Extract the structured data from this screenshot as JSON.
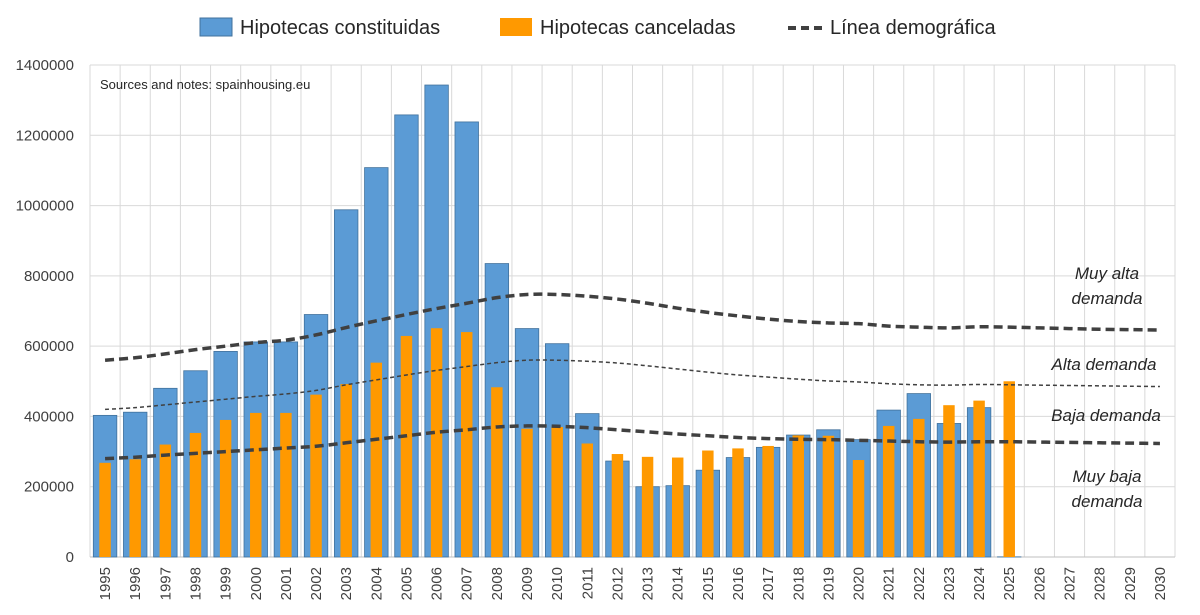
{
  "chart_data": {
    "type": "bar",
    "categories": [
      "1995",
      "1996",
      "1997",
      "1998",
      "1999",
      "2000",
      "2001",
      "2002",
      "2003",
      "2004",
      "2005",
      "2006",
      "2007",
      "2008",
      "2009",
      "2010",
      "2011",
      "2012",
      "2013",
      "2014",
      "2015",
      "2016",
      "2017",
      "2018",
      "2019",
      "2020",
      "2021",
      "2022",
      "2023",
      "2024",
      "2025",
      "2026",
      "2027",
      "2028",
      "2029",
      "2030"
    ],
    "ylim": [
      0,
      1400000
    ],
    "yticks": [
      "0",
      "200000",
      "400000",
      "600000",
      "800000",
      "1000000",
      "1200000",
      "1400000"
    ],
    "grid": true,
    "legend_position": "top",
    "series": [
      {
        "name": "Hipotecas constituidas",
        "kind": "bar",
        "color": "#5B9BD5",
        "values": [
          403000,
          412000,
          480000,
          530000,
          585000,
          612000,
          612000,
          690000,
          988000,
          1108000,
          1258000,
          1343000,
          1238000,
          835000,
          650000,
          607000,
          408000,
          273000,
          200000,
          203000,
          247000,
          283000,
          312000,
          347000,
          362000,
          334000,
          418000,
          465000,
          380000,
          425000,
          457,
          null,
          null,
          null,
          null,
          null
        ]
      },
      {
        "name": "Hipotecas canceladas",
        "kind": "bar",
        "color": "#FF9900",
        "values": [
          268000,
          278000,
          320000,
          353000,
          390000,
          410000,
          410000,
          462000,
          492000,
          553000,
          629000,
          651000,
          640000,
          483000,
          365000,
          370000,
          323000,
          293000,
          285000,
          283000,
          303000,
          309000,
          316000,
          346000,
          345000,
          276000,
          373000,
          393000,
          432000,
          445000,
          500000,
          null,
          null,
          null,
          null,
          null
        ]
      },
      {
        "name": "Línea demográfica",
        "kind": "dashed-line",
        "color": "#404040",
        "lines": [
          {
            "label": "Muy alta demanda",
            "weight": "thick",
            "values": [
              560000,
              567000,
              578000,
              590000,
              600000,
              610000,
              617000,
              632000,
              653000,
              672000,
              690000,
              707000,
              722000,
              738000,
              747000,
              747000,
              742000,
              734000,
              722000,
              708000,
              696000,
              686000,
              677000,
              670000,
              666000,
              664000,
              657000,
              654000,
              652000,
              655000,
              654000,
              652000,
              650000,
              648000,
              647000,
              646000
            ]
          },
          {
            "label": "Alta demanda",
            "weight": "thin",
            "values": [
              420000,
              425000,
              433000,
              441000,
              449000,
              457000,
              464000,
              474000,
              490000,
              504000,
              518000,
              531000,
              542000,
              553000,
              560000,
              560000,
              557000,
              552000,
              544000,
              535000,
              526000,
              518000,
              512000,
              506000,
              501000,
              498000,
              493000,
              490000,
              489000,
              491000,
              490000,
              489000,
              488000,
              487000,
              486000,
              485000
            ]
          },
          {
            "label": "Baja demanda",
            "weight": "thick",
            "values": [
              280000,
              284000,
              290000,
              295000,
              300000,
              305000,
              310000,
              315000,
              325000,
              335000,
              345000,
              355000,
              362000,
              370000,
              373000,
              372000,
              368000,
              362000,
              356000,
              350000,
              345000,
              340000,
              337000,
              335000,
              334000,
              332000,
              330000,
              328000,
              327000,
              328000,
              328000,
              327000,
              326000,
              325000,
              324000,
              323000
            ]
          }
        ]
      }
    ],
    "annotations": {
      "source": "Sources and notes: spainhousing.eu",
      "muy_alta_1": "Muy alta",
      "muy_alta_2": "demanda",
      "alta": "Alta demanda",
      "baja": "Baja demanda",
      "muy_baja_1": "Muy baja",
      "muy_baja_2": "demanda"
    }
  }
}
